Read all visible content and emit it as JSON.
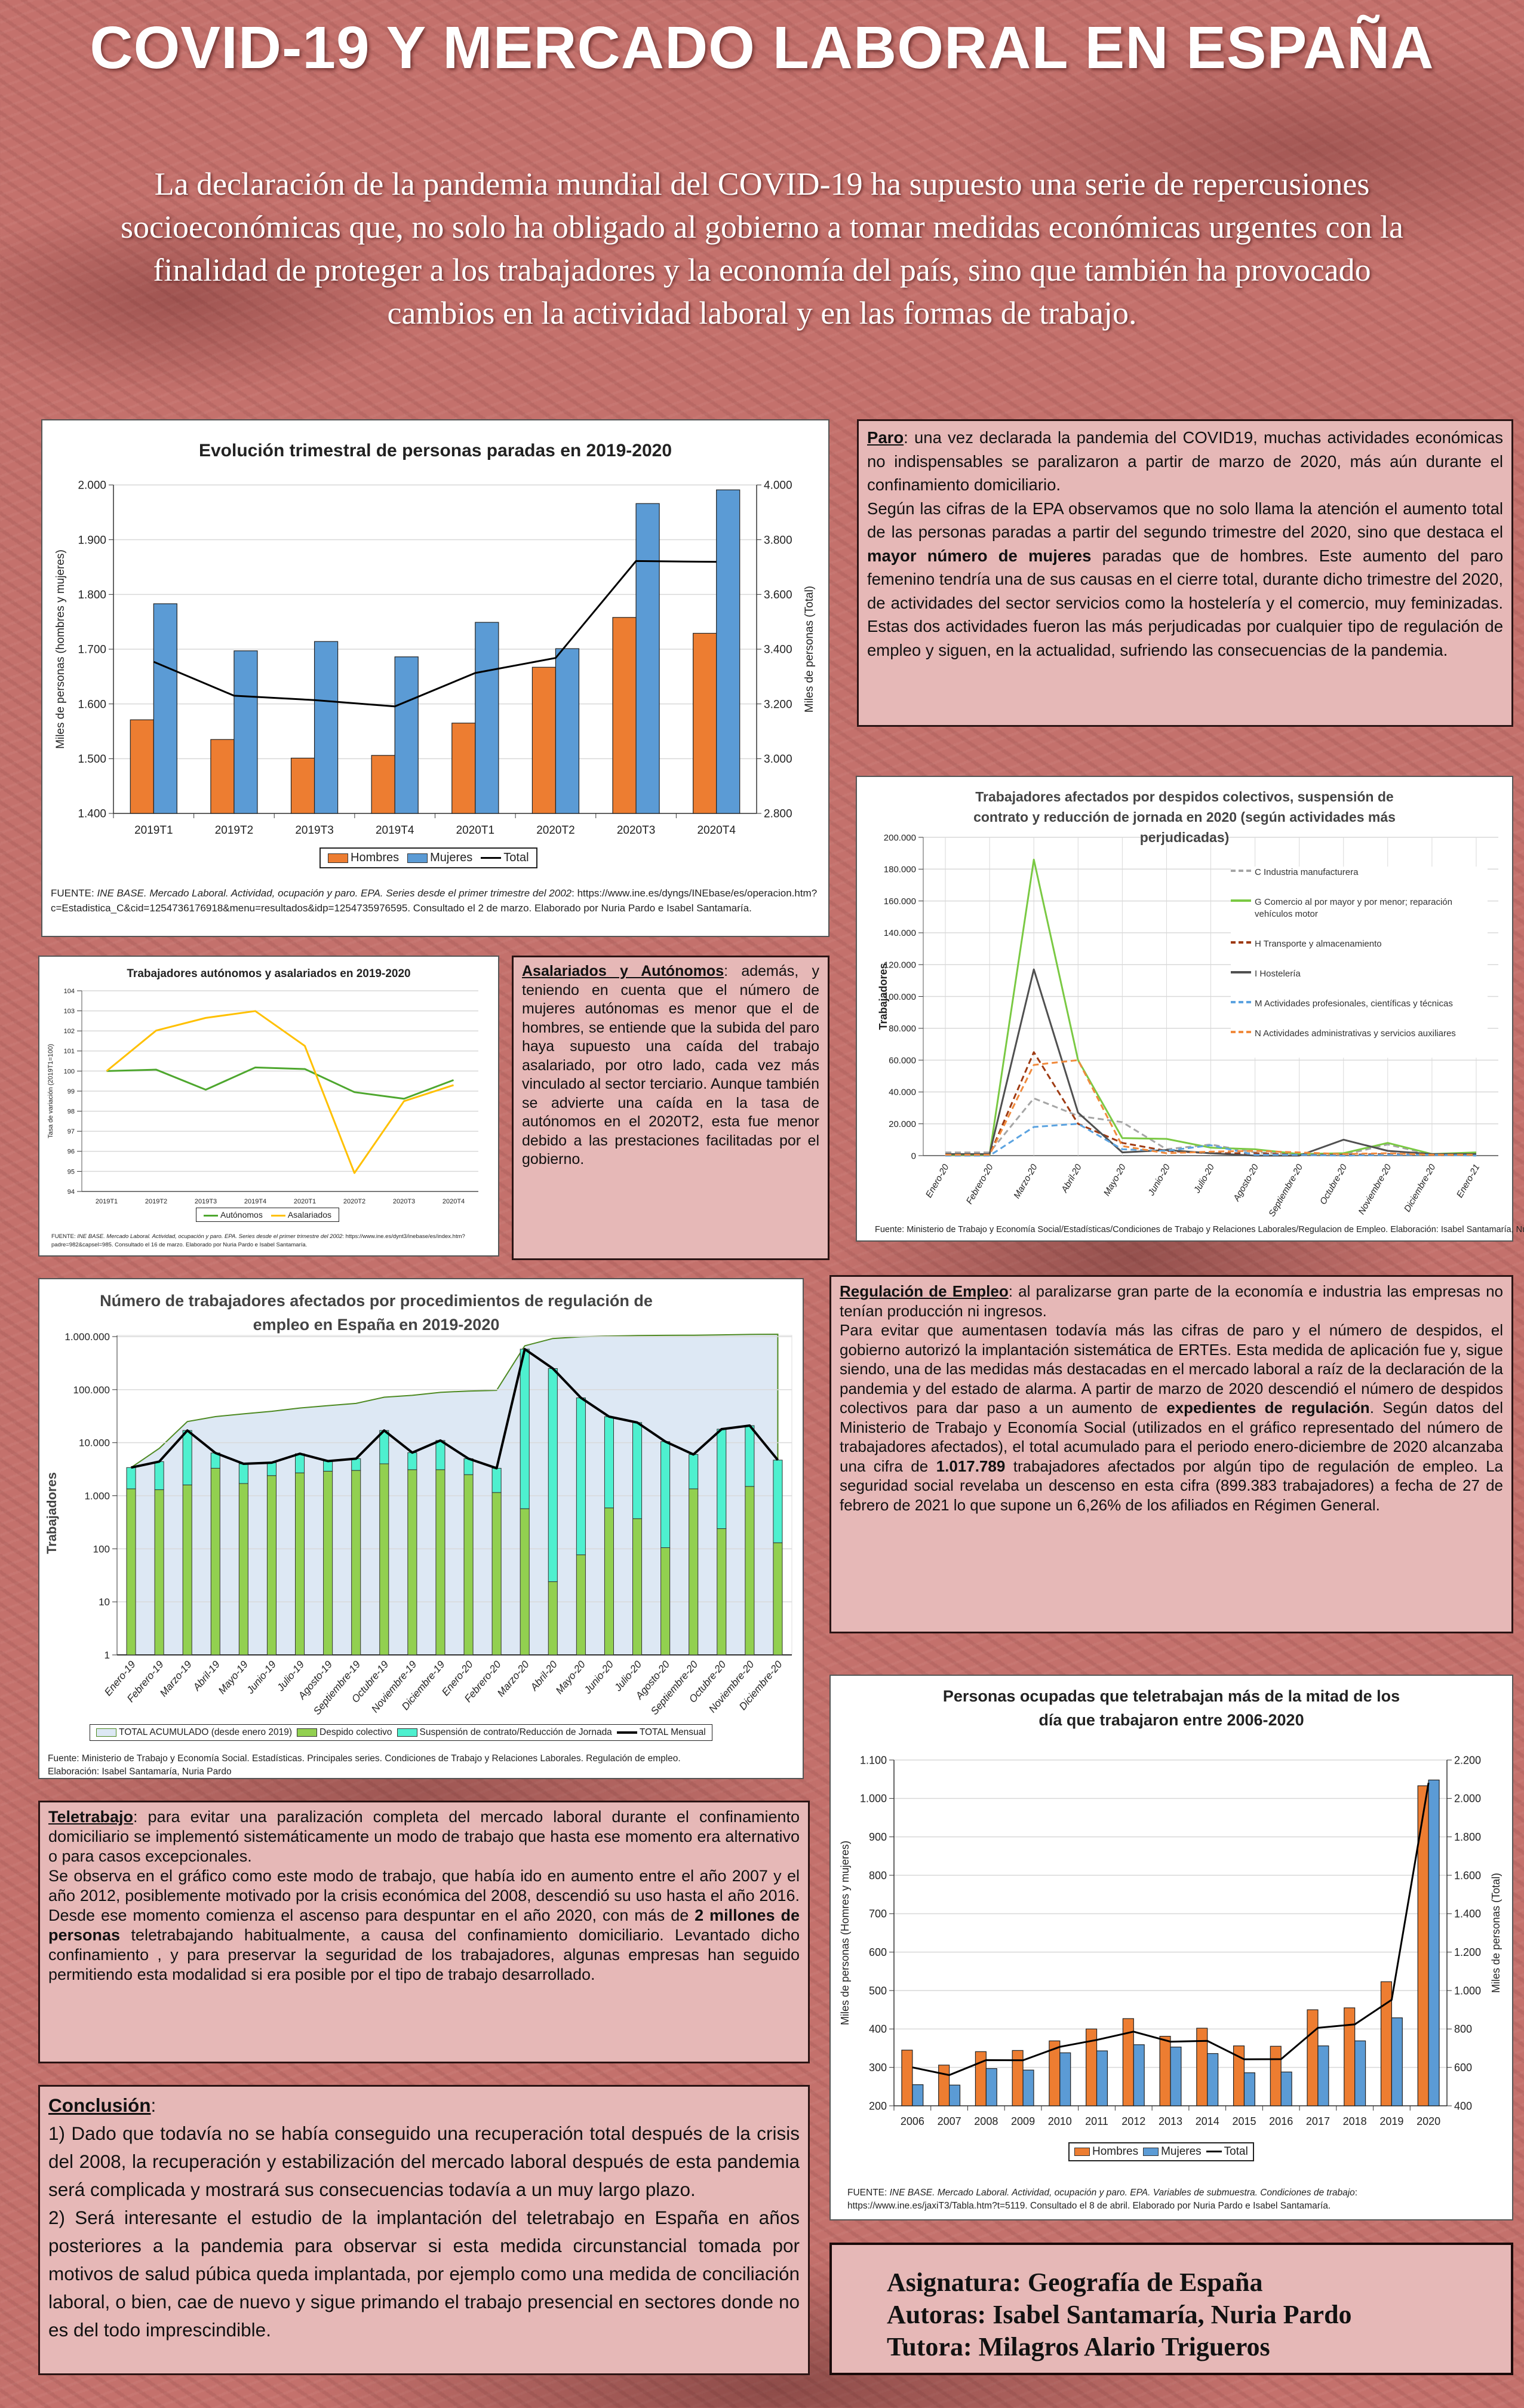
{
  "header": {
    "title": "COVID-19 Y MERCADO LABORAL EN ESPAÑA",
    "subtitle": "La declaración de la pandemia mundial del COVID-19 ha supuesto una serie de repercusiones socioeconómicas que, no solo ha obligado al gobierno a tomar medidas económicas urgentes con la finalidad de proteger a los trabajadores y la economía del país, sino que también ha provocado cambios en la actividad laboral y en las formas de trabajo."
  },
  "sections": {
    "paro": {
      "heading": "Paro",
      "paragraphs": [
        [
          {
            "t": ": una vez declarada la pandemia del COVID19, muchas actividades económicas no indispensables se paralizaron a partir de marzo de 2020, más aún durante el confinamiento domiciliario."
          }
        ],
        [
          {
            "t": "Según las cifras de la EPA observamos que no solo llama la atención el aumento total de las personas paradas a partir del segundo trimestre del 2020, sino que destaca el "
          },
          {
            "t": "mayor número de mujeres",
            "b": true
          },
          {
            "t": " paradas que de hombres. Este aumento del paro femenino tendría una de sus causas en el cierre total, durante dicho trimestre del 2020, de actividades del sector servicios como la hostelería y el comercio, muy feminizadas. Estas dos actividades fueron las más perjudicadas por cualquier tipo de regulación de empleo y siguen, en la actualidad, sufriendo las consecuencias de la pandemia."
          }
        ]
      ]
    },
    "asalariados": {
      "heading": "Asalariados y Autónomos",
      "paragraphs": [
        [
          {
            "t": ": además, y teniendo en cuenta que el número de mujeres autónomas es menor que el de hombres, se entiende que la subida del paro haya supuesto una caída del trabajo asalariado, por otro lado, cada vez más vinculado al sector terciario. Aunque también se advierte una caída en la tasa de autónomos en el 2020T2, esta fue menor debido a las prestaciones facilitadas por el gobierno."
          }
        ]
      ]
    },
    "regulacion": {
      "heading": "Regulación de Empleo",
      "paragraphs": [
        [
          {
            "t": ": al paralizarse gran parte de la economía e industria las empresas no tenían producción ni ingresos."
          }
        ],
        [
          {
            "t": "Para evitar que aumentasen todavía más las cifras de paro y el número de despidos, el gobierno autorizó la implantación sistemática de ERTEs. Esta medida de aplicación fue y, sigue siendo, una de las medidas más destacadas en el mercado laboral a raíz de la declaración de la pandemia y del estado de alarma. A partir de marzo de 2020 descendió el número de despidos colectivos para dar paso a un aumento de "
          },
          {
            "t": "expedientes de regulación",
            "b": true
          },
          {
            "t": ". Según datos del Ministerio de Trabajo y Economía Social (utilizados en el gráfico representado del número de trabajadores afectados), el total acumulado para el periodo enero-diciembre de 2020 alcanzaba una cifra de "
          },
          {
            "t": "1.017.789",
            "b": true
          },
          {
            "t": " trabajadores afectados por algún tipo de regulación de empleo. La seguridad social revelaba un descenso en esta cifra (899.383 trabajadores) a fecha de 27 de febrero de 2021 lo que supone un 6,26% de los afiliados en Régimen General."
          }
        ]
      ]
    },
    "teletrabajo": {
      "heading": "Teletrabajo",
      "paragraphs": [
        [
          {
            "t": ": para evitar una paralización completa del mercado laboral durante el confinamiento domiciliario se implementó sistemáticamente un modo de trabajo que hasta ese momento era alternativo o para casos excepcionales."
          }
        ],
        [
          {
            "t": "Se observa en el gráfico como este modo de trabajo, que había ido en aumento entre el año 2007 y el año 2012, posiblemente motivado por la crisis económica del 2008, descendió su uso hasta el año 2016. Desde ese momento comienza el ascenso para despuntar en el año 2020, con más de "
          },
          {
            "t": "2 millones de personas",
            "b": true
          },
          {
            "t": " teletrabajando habitualmente, a causa del confinamiento domiciliario. Levantado dicho confinamiento , y para preservar la seguridad de los trabajadores, algunas empresas han seguido permitiendo esta modalidad si era posible por el tipo de trabajo desarrollado."
          }
        ]
      ]
    },
    "conclusion": {
      "heading": "Conclusión",
      "paragraphs": [
        [
          {
            "t": ":"
          }
        ],
        [
          {
            "t": "1) Dado que todavía no se había conseguido una recuperación total después de la crisis del 2008, la recuperación y estabilización del mercado laboral después de esta pandemia será complicada y mostrará sus consecuencias todavía a un muy largo plazo."
          }
        ],
        [
          {
            "t": "2) Será interesante el estudio de la implantación del teletrabajo en España en años posteriores a la pandemia para observar si esta medida circunstancial tomada por motivos de salud púbica queda implantada, por ejemplo como una medida de conciliación laboral, o bien, cae de nuevo y sigue primando el trabajo presencial en sectores donde no es del todo imprescindible."
          }
        ]
      ]
    }
  },
  "credits": {
    "asignatura": "Asignatura: Geografía de España",
    "autoras": "Autoras: Isabel Santamaría, Nuria Pardo",
    "tutora": "Tutora: Milagros Alario Trigueros"
  },
  "chart_data": [
    {
      "type": "bar",
      "title": "Evolución trimestral de personas paradas en 2019-2020",
      "categories": [
        "2019T1",
        "2019T2",
        "2019T3",
        "2019T4",
        "2020T1",
        "2020T2",
        "2020T3",
        "2020T4"
      ],
      "ylabel": "Miles de personas (hombres y mujeres)",
      "y2label": "Miles de personas (Total)",
      "ylim": [
        1400,
        2000
      ],
      "y2lim": [
        2800,
        4000
      ],
      "ytick_labels": [
        "1.400",
        "1.500",
        "1.600",
        "1.700",
        "1.800",
        "1.900",
        "2.000"
      ],
      "y2tick_labels": [
        "2.800",
        "3.000",
        "3.200",
        "3.400",
        "3.600",
        "3.800",
        "4.000"
      ],
      "series": [
        {
          "name": "Hombres",
          "kind": "bar",
          "color": "#ed7d31",
          "values": [
            1571,
            1535,
            1501,
            1506,
            1565,
            1667,
            1758,
            1729
          ]
        },
        {
          "name": "Mujeres",
          "kind": "bar",
          "color": "#5b9bd5",
          "values": [
            1783,
            1697,
            1714,
            1686,
            1749,
            1701,
            1966,
            1991
          ]
        },
        {
          "name": "Total",
          "kind": "line",
          "axis": "right",
          "color": "#000000",
          "values": [
            3354,
            3230,
            3214,
            3191,
            3313,
            3368,
            3722,
            3719
          ]
        }
      ],
      "legend": "bottom",
      "source_label": "FUENTE: ",
      "source_italic": "INE BASE. Mercado Laboral. Actividad, ocupación y paro. EPA. Series desde el primer trimestre del 2002",
      "source_rest": ": https://www.ine.es/dyngs/INEbase/es/operacion.htm?c=Estadistica_C&cid=1254736176918&menu=resultados&idp=1254735976595. Consultado el 2 de marzo. Elaborado por Nuria Pardo e Isabel Santamaría."
    },
    {
      "type": "line",
      "title": "Trabajadores afectados por despidos colectivos, suspensión de contrato y reducción de jornada en 2020 (según actividades más perjudicadas)",
      "categories": [
        "Enero-20",
        "Febrero-20",
        "Marzo-20",
        "Abril-20",
        "Mayo-20",
        "Junio-20",
        "Julio-20",
        "Agosto-20",
        "Septiembre-20",
        "Octubre-20",
        "Noviembre-20",
        "Diciembre-20",
        "Enero-21"
      ],
      "ylabel": "Trabajadores",
      "ylim": [
        0,
        200000
      ],
      "ytick_labels": [
        "0",
        "20.000",
        "40.000",
        "60.000",
        "80.000",
        "100.000",
        "120.000",
        "140.000",
        "160.000",
        "180.000",
        "200.000"
      ],
      "series": [
        {
          "name": "C Industria manufacturera",
          "color": "#a5a5a5",
          "dash": true,
          "values": [
            2000,
            2000,
            36000,
            25000,
            21000,
            4000,
            7000,
            2000,
            1000,
            500,
            7000,
            500,
            500
          ]
        },
        {
          "name": "G Comercio al por mayor y por menor; reparación vehículos motor",
          "color": "#7ac943",
          "dash": false,
          "values": [
            500,
            500,
            186000,
            60000,
            11000,
            10500,
            5000,
            4000,
            1000,
            1500,
            8000,
            1000,
            2000
          ]
        },
        {
          "name": "H Transporte y almacenamiento",
          "color": "#9e3a12",
          "dash": true,
          "values": [
            500,
            500,
            65000,
            20000,
            8000,
            3000,
            1500,
            1500,
            500,
            500,
            1000,
            500,
            500
          ]
        },
        {
          "name": "I Hostelería",
          "color": "#505050",
          "dash": false,
          "values": [
            1000,
            1000,
            117000,
            27000,
            2000,
            3500,
            1500,
            0,
            0,
            10000,
            3000,
            1000,
            1000
          ]
        },
        {
          "name": "M Actividades profesionales, científicas y técnicas",
          "color": "#5ba3e0",
          "dash": true,
          "values": [
            0,
            0,
            18000,
            20000,
            4000,
            3000,
            6500,
            500,
            500,
            0,
            500,
            500,
            0
          ]
        },
        {
          "name": "N Actividades administrativas y servicios auxiliares",
          "color": "#f08a3c",
          "dash": true,
          "values": [
            500,
            500,
            57000,
            60000,
            6000,
            1500,
            2500,
            3000,
            2000,
            1000,
            1500,
            500,
            500
          ]
        }
      ],
      "legend": "right",
      "source": "Fuente: Ministerio de Trabajo y Economía Social/Estadísticas/Condiciones de Trabajo y Relaciones Laborales/Regulacion de Empleo. Elaboración: Isabel Santamaría, Nuria Pardo"
    },
    {
      "type": "line",
      "title": "Trabajadores autónomos y asalariados en 2019-2020",
      "categories": [
        "2019T1",
        "2019T2",
        "2019T3",
        "2019T4",
        "2020T1",
        "2020T2",
        "2020T3",
        "2020T4"
      ],
      "ylabel": "Tasa de variación (2019T1=100)",
      "ylim": [
        94,
        104
      ],
      "ytick_labels": [
        "94",
        "95",
        "96",
        "97",
        "98",
        "99",
        "100",
        "101",
        "102",
        "103",
        "104"
      ],
      "series": [
        {
          "name": "Autónomos",
          "color": "#4ea72e",
          "values": [
            100,
            100.07,
            99.07,
            100.18,
            100.1,
            98.95,
            98.62,
            99.55
          ]
        },
        {
          "name": "Asalariados",
          "color": "#ffc000",
          "values": [
            100,
            102.02,
            102.65,
            102.99,
            101.25,
            94.92,
            98.5,
            99.3
          ]
        }
      ],
      "legend": "bottom",
      "source_label": "FUENTE: ",
      "source_italic": "INE BASE. Mercado Laboral. Actividad, ocupación y paro. EPA. Series desde el primer trimestre del 2002",
      "source_rest": ": https://www.ine.es/dynt3/inebase/es/index.htm?padre=982&capsel=985. Consultado el 16 de marzo. Elaborado por Nuria Pardo e Isabel Santamaría."
    },
    {
      "type": "bar",
      "scale": "log",
      "title": "Número de trabajadores afectados por procedimientos de regulación de empleo en España en 2019-2020",
      "categories": [
        "Enero-19",
        "Febrero-19",
        "Marzo-19",
        "Abril-19",
        "Mayo-19",
        "Junio-19",
        "Julio-19",
        "Agosto-19",
        "Septiembre-19",
        "Octubre-19",
        "Noviembre-19",
        "Diciembre-19",
        "Enero-20",
        "Febrero-20",
        "Marzo-20",
        "Abril-20",
        "Mayo-20",
        "Junio-20",
        "Julio-20",
        "Agosto-20",
        "Septiembre-20",
        "Octubre-20",
        "Noviembre-20",
        "Diciembre-20"
      ],
      "ylabel": "Trabajadores",
      "ylim": [
        1,
        1000000
      ],
      "ytick_labels": [
        "1",
        "10",
        "100",
        "1.000",
        "10.000",
        "100.000",
        "1.000.000"
      ],
      "series": [
        {
          "name": "TOTAL ACUMULADO (desde enero 2019)",
          "kind": "area",
          "color": "#dde8f4",
          "stroke": "#4e8a22",
          "values": [
            3400,
            7800,
            25000,
            31000,
            35000,
            39000,
            45000,
            50000,
            55000,
            72000,
            78000,
            89000,
            94000,
            97000,
            670000,
            920000,
            990000,
            1020000,
            1045000,
            1055000,
            1061000,
            1079000,
            1100000,
            1105000
          ]
        },
        {
          "name": "Despido colectivo",
          "kind": "bar",
          "color": "#92d050",
          "values": [
            1350,
            1300,
            1600,
            3300,
            1700,
            2400,
            2700,
            2900,
            3000,
            4000,
            3100,
            3100,
            2500,
            1150,
            570,
            24,
            77,
            590,
            370,
            105,
            1350,
            240,
            1500,
            130
          ]
        },
        {
          "name": "Suspensión de contrato/Reducción de Jornada",
          "kind": "bar",
          "color": "#4ef0cf",
          "values": [
            2050,
            3100,
            15400,
            3100,
            2300,
            1800,
            3500,
            1600,
            2000,
            13000,
            3400,
            7900,
            2500,
            2150,
            579430,
            249976,
            69923,
            30410,
            23630,
            10395,
            4650,
            17760,
            19500,
            4570
          ]
        },
        {
          "name": "TOTAL Mensual",
          "kind": "line",
          "color": "#000000",
          "values": [
            3400,
            4400,
            17000,
            6400,
            4000,
            4200,
            6200,
            4500,
            5000,
            17000,
            6500,
            11000,
            5000,
            3300,
            580000,
            250000,
            70000,
            31000,
            24000,
            10500,
            6000,
            18000,
            21000,
            4700
          ]
        }
      ],
      "legend": "bottom",
      "source": "Fuente: Ministerio de Trabajo y Economía Social. Estadísticas. Principales series. Condiciones de Trabajo y Relaciones Laborales. Regulación de empleo. Elaboración: Isabel Santamaría, Nuria Pardo"
    },
    {
      "type": "bar",
      "title": "Personas ocupadas que teletrabajan más de la mitad de los día que trabajaron entre 2006-2020",
      "categories": [
        "2006",
        "2007",
        "2008",
        "2009",
        "2010",
        "2011",
        "2012",
        "2013",
        "2014",
        "2015",
        "2016",
        "2017",
        "2018",
        "2019",
        "2020"
      ],
      "ylabel": "Miles de personas (Homres y mujeres)",
      "y2label": "Miles de personas (Total)",
      "ylim": [
        200,
        1100
      ],
      "y2lim": [
        400,
        2200
      ],
      "ytick_labels": [
        "200",
        "300",
        "400",
        "500",
        "600",
        "700",
        "800",
        "900",
        "1.000",
        "1.100"
      ],
      "y2tick_labels": [
        "400",
        "600",
        "800",
        "1.000",
        "1.200",
        "1.400",
        "1.600",
        "1.800",
        "2.000",
        "2.200"
      ],
      "series": [
        {
          "name": "Hombres",
          "kind": "bar",
          "color": "#ed7d31",
          "values": [
            345,
            306,
            341,
            344,
            369,
            400,
            427,
            381,
            402,
            356,
            355,
            450,
            455,
            523,
            1033
          ]
        },
        {
          "name": "Mujeres",
          "kind": "bar",
          "color": "#5b9bd5",
          "values": [
            255,
            254,
            297,
            293,
            338,
            343,
            359,
            353,
            336,
            286,
            288,
            356,
            369,
            429,
            1048
          ]
        },
        {
          "name": "Total",
          "kind": "line",
          "axis": "right",
          "color": "#000000",
          "values": [
            600,
            560,
            638,
            637,
            707,
            743,
            786,
            734,
            738,
            642,
            643,
            806,
            824,
            952,
            2081
          ]
        }
      ],
      "legend": "bottom",
      "source_label": "FUENTE: ",
      "source_italic": "INE BASE. Mercado Laboral. Actividad, ocupación y paro. EPA. Variables de submuestra. Condiciones de trabajo",
      "source_rest": ": https://www.ine.es/jaxiT3/Tabla.htm?t=5119. Consultado el 8 de abril. Elaborado por Nuria Pardo e Isabel Santamaría."
    }
  ]
}
